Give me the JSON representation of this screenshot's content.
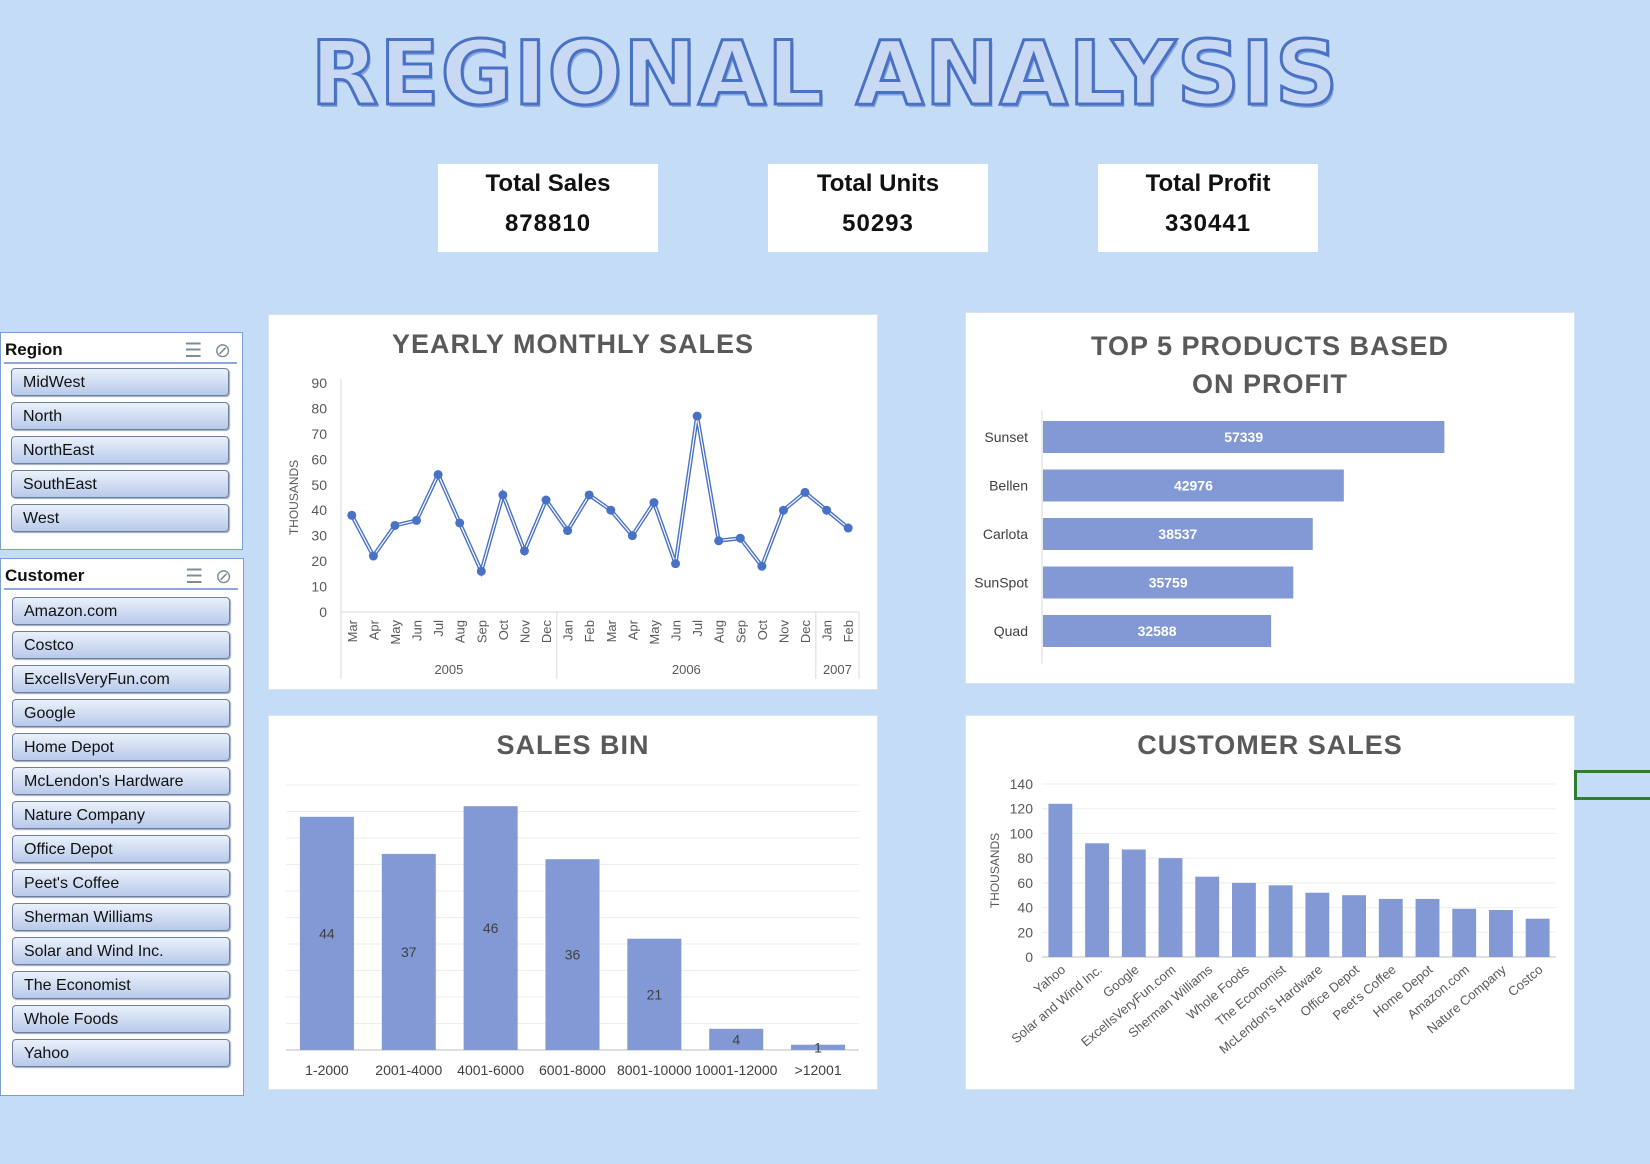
{
  "title": "REGIONAL ANALYSIS",
  "kpis": [
    {
      "label": "Total Sales",
      "value": "878810"
    },
    {
      "label": "Total Units",
      "value": "50293"
    },
    {
      "label": "Total Profit",
      "value": "330441"
    }
  ],
  "slicers": {
    "region": {
      "title": "Region",
      "icons": [
        "multi-select-icon",
        "clear-filter-icon"
      ],
      "items": [
        "MidWest",
        "North",
        "NorthEast",
        "SouthEast",
        "West"
      ]
    },
    "customer": {
      "title": "Customer",
      "icons": [
        "multi-select-icon",
        "clear-filter-icon"
      ],
      "items": [
        "Amazon.com",
        "Costco",
        "ExcelIsVeryFun.com",
        "Google",
        "Home Depot",
        "McLendon's Hardware",
        "Nature Company",
        "Office Depot",
        "Peet's Coffee",
        "Sherman Williams",
        "Solar and Wind Inc.",
        "The Economist",
        "Whole Foods",
        "Yahoo"
      ]
    }
  },
  "chart_data": [
    {
      "id": "monthly",
      "type": "line",
      "title": "YEARLY MONTHLY SALES",
      "xlabel": "",
      "ylabel": "THOUSANDS",
      "ylim": [
        0,
        90
      ],
      "yticks": [
        0,
        10,
        20,
        30,
        40,
        50,
        60,
        70,
        80,
        90
      ],
      "grid": false,
      "color": "#4a72c4",
      "categories": [
        "Mar",
        "Apr",
        "May",
        "Jun",
        "Jul",
        "Aug",
        "Sep",
        "Oct",
        "Nov",
        "Dec",
        "Jan",
        "Feb",
        "Mar",
        "Apr",
        "May",
        "Jun",
        "Jul",
        "Aug",
        "Sep",
        "Oct",
        "Nov",
        "Dec",
        "Jan",
        "Feb"
      ],
      "groups": [
        {
          "label": "2005",
          "count": 10
        },
        {
          "label": "2006",
          "count": 12
        },
        {
          "label": "2007",
          "count": 2
        }
      ],
      "values": [
        38,
        22,
        34,
        36,
        54,
        35,
        16,
        46,
        24,
        44,
        32,
        46,
        40,
        30,
        43,
        19,
        77,
        28,
        29,
        18,
        40,
        47,
        40,
        33
      ]
    },
    {
      "id": "top5",
      "type": "bar",
      "orientation": "horizontal",
      "title": "TOP 5 PRODUCTS BASED ON PROFIT",
      "xlabel": "",
      "ylabel": "",
      "xlim": [
        0,
        80000
      ],
      "color": "#8299d5",
      "categories": [
        "Sunset",
        "Bellen",
        "Carlota",
        "SunSpot",
        "Quad"
      ],
      "values": [
        57339,
        42976,
        38537,
        35759,
        32588
      ]
    },
    {
      "id": "bins",
      "type": "bar",
      "title": "SALES BIN",
      "xlabel": "",
      "ylabel": "",
      "ylim": [
        0,
        50
      ],
      "grid": true,
      "color": "#8299d5",
      "categories": [
        "1-2000",
        "2001-4000",
        "4001-6000",
        "6001-8000",
        "8001-10000",
        "10001-12000",
        ">12001"
      ],
      "values": [
        44,
        37,
        46,
        36,
        21,
        4,
        1
      ]
    },
    {
      "id": "customers",
      "type": "bar",
      "title": "CUSTOMER SALES",
      "xlabel": "",
      "ylabel": "THOUSANDS",
      "ylim": [
        0,
        140
      ],
      "yticks": [
        0,
        20,
        40,
        60,
        80,
        100,
        120,
        140
      ],
      "grid": true,
      "color": "#8299d5",
      "categories": [
        "Yahoo",
        "Solar and Wind Inc.",
        "Google",
        "ExcelIsVeryFun.com",
        "Sherman Williams",
        "Whole Foods",
        "The Economist",
        "McLendon's Hardware",
        "Office Depot",
        "Peet's Coffee",
        "Home Depot",
        "Amazon.com",
        "Nature Company",
        "Costco"
      ],
      "values": [
        124,
        92,
        87,
        80,
        65,
        60,
        58,
        52,
        50,
        47,
        47,
        39,
        38,
        31
      ]
    }
  ]
}
